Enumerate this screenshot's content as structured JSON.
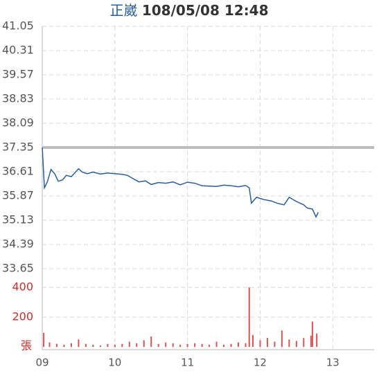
{
  "chart_data": [
    {
      "type": "line",
      "title": "正崴",
      "subtitle": "108/05/08 12:48",
      "x": [
        9,
        9.03,
        9.07,
        9.12,
        9.17,
        9.22,
        9.28,
        9.33,
        9.4,
        9.5,
        9.55,
        9.62,
        9.7,
        9.8,
        9.9,
        10.0,
        10.1,
        10.17,
        10.25,
        10.33,
        10.42,
        10.5,
        10.6,
        10.7,
        10.8,
        10.9,
        11.0,
        11.1,
        11.2,
        11.3,
        11.4,
        11.5,
        11.6,
        11.7,
        11.8,
        11.85,
        11.88,
        11.95,
        12.05,
        12.15,
        12.25,
        12.33,
        12.4,
        12.5,
        12.6,
        12.65,
        12.72,
        12.77,
        12.8
      ],
      "values": [
        37.35,
        36.12,
        36.3,
        36.68,
        36.55,
        36.32,
        36.36,
        36.5,
        36.46,
        36.7,
        36.6,
        36.55,
        36.6,
        36.54,
        36.57,
        36.55,
        36.53,
        36.5,
        36.4,
        36.3,
        36.33,
        36.22,
        36.28,
        36.26,
        36.3,
        36.21,
        36.29,
        36.26,
        36.18,
        36.17,
        36.16,
        36.2,
        36.18,
        36.15,
        36.19,
        36.12,
        35.65,
        35.83,
        35.76,
        35.72,
        35.64,
        35.6,
        35.83,
        35.7,
        35.6,
        35.5,
        35.47,
        35.23,
        35.37
      ],
      "color": "#2a5d9b",
      "reference_line": 37.35,
      "reference_color": "#bdbdbd",
      "xlim": [
        9,
        13.57
      ],
      "ylim": [
        33.65,
        41.05
      ],
      "yticks": [
        41.05,
        40.31,
        39.57,
        38.83,
        38.09,
        37.35,
        36.61,
        35.87,
        35.13,
        34.39,
        33.65
      ],
      "grid": true
    },
    {
      "type": "bar",
      "y_label": "張",
      "x": [
        9.02,
        9.1,
        9.2,
        9.3,
        9.4,
        9.5,
        9.6,
        9.7,
        9.8,
        9.9,
        10.0,
        10.1,
        10.2,
        10.3,
        10.4,
        10.5,
        10.6,
        10.7,
        10.8,
        10.9,
        11.0,
        11.1,
        11.2,
        11.3,
        11.4,
        11.5,
        11.6,
        11.7,
        11.8,
        11.85,
        11.9,
        12.0,
        12.1,
        12.2,
        12.3,
        12.4,
        12.5,
        12.6,
        12.7,
        12.72,
        12.78
      ],
      "values": [
        95,
        30,
        20,
        15,
        25,
        50,
        20,
        15,
        10,
        20,
        15,
        20,
        35,
        25,
        45,
        70,
        20,
        30,
        25,
        15,
        20,
        25,
        20,
        15,
        35,
        15,
        20,
        30,
        25,
        400,
        80,
        45,
        60,
        35,
        110,
        50,
        40,
        60,
        75,
        170,
        90
      ],
      "color": "#d9534f",
      "xlim": [
        9,
        13.57
      ],
      "xticks": [
        {
          "value": 9,
          "label": "09"
        },
        10,
        11,
        12,
        13
      ],
      "ylim": [
        0,
        447
      ],
      "yticks": [
        200,
        400
      ],
      "grid": true
    }
  ]
}
